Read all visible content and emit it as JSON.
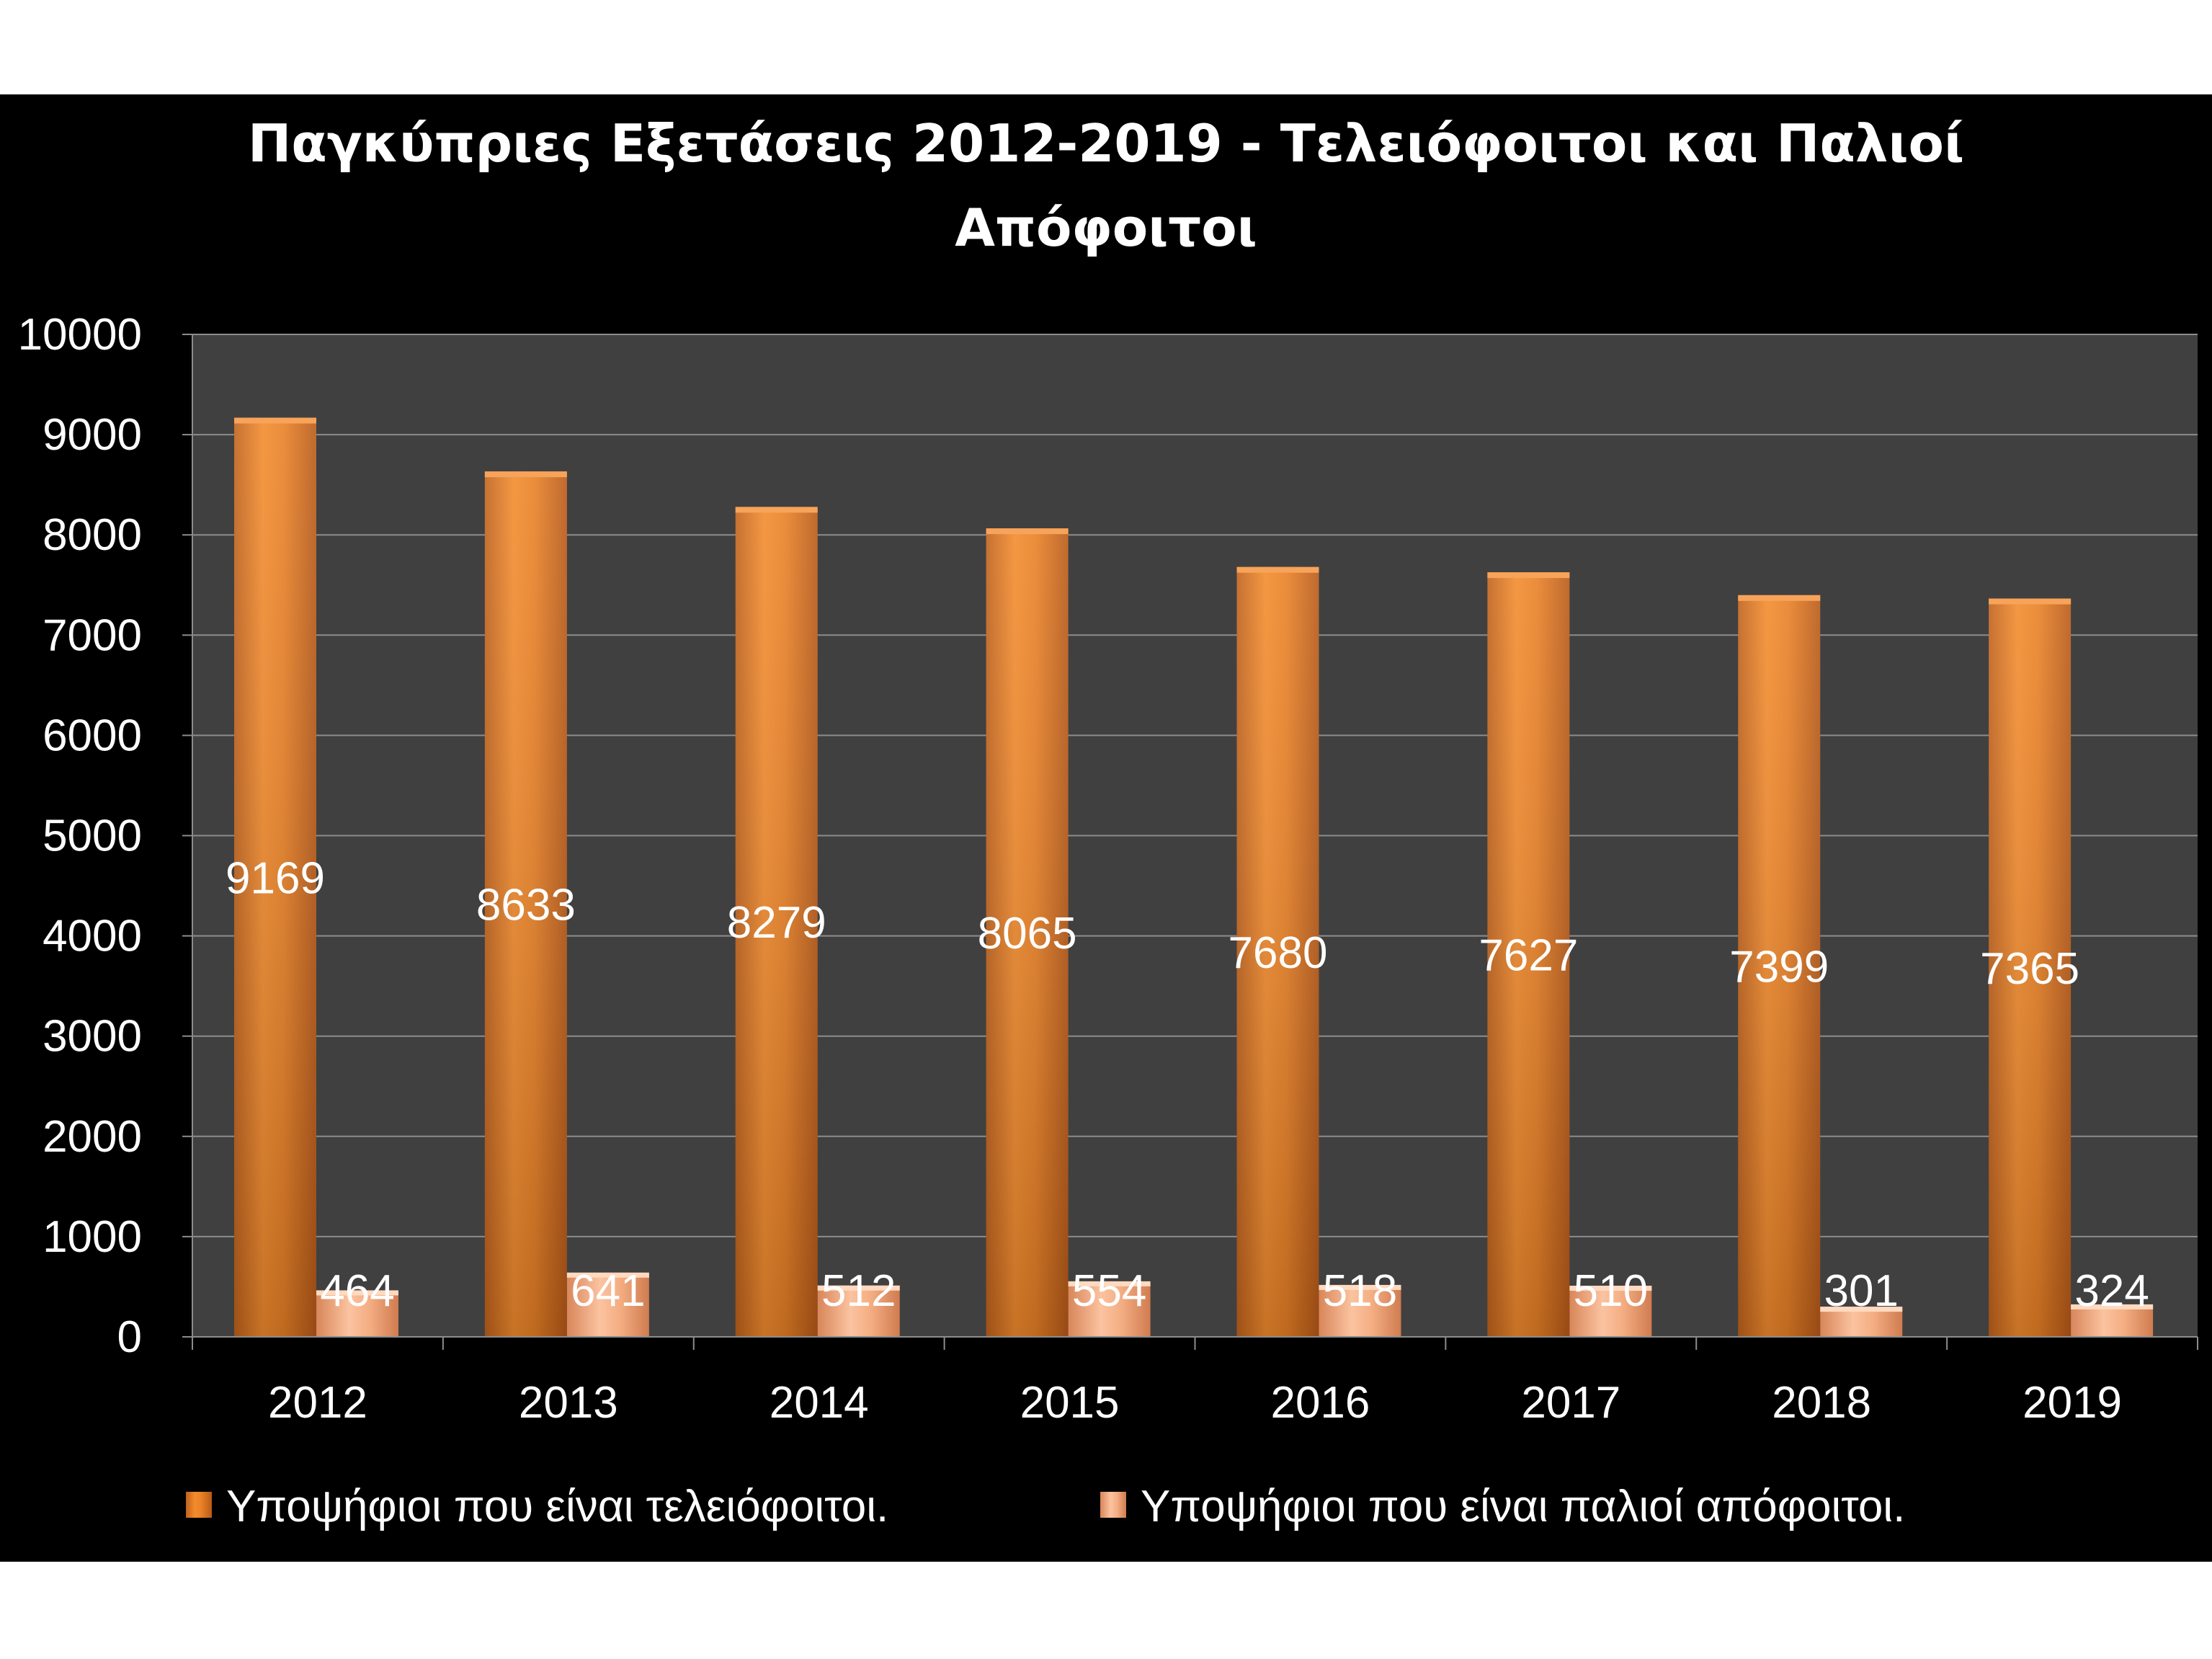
{
  "chart_data": {
    "type": "bar",
    "title": "Παγκύπριες Εξετάσεις 2012-2019 - Τελειόφοιτοι και Παλιοί Απόφοιτοι",
    "title_lines": [
      "Παγκύπριες Εξετάσεις 2012-2019 - Τελειόφοιτοι και Παλιοί",
      "Απόφοιτοι"
    ],
    "categories": [
      "2012",
      "2013",
      "2014",
      "2015",
      "2016",
      "2017",
      "2018",
      "2019"
    ],
    "series": [
      {
        "name": "Υποψήφιοι που είναι τελειόφοιτοι.",
        "values": [
          9169,
          8633,
          8279,
          8065,
          7680,
          7627,
          7399,
          7365
        ],
        "color": "#e98126"
      },
      {
        "name": "Υποψήφιοι που είναι παλιοί απόφοιτοι.",
        "values": [
          464,
          641,
          512,
          554,
          518,
          510,
          301,
          324
        ],
        "color": "#f6b48a"
      }
    ],
    "xlabel": "",
    "ylabel": "",
    "ylim": [
      0,
      10000
    ],
    "yticks": [
      0,
      1000,
      2000,
      3000,
      4000,
      5000,
      6000,
      7000,
      8000,
      9000,
      10000
    ],
    "grid": true,
    "legend_position": "bottom",
    "plot_background": "#404040",
    "gridline_color": "#8c8c8c"
  }
}
